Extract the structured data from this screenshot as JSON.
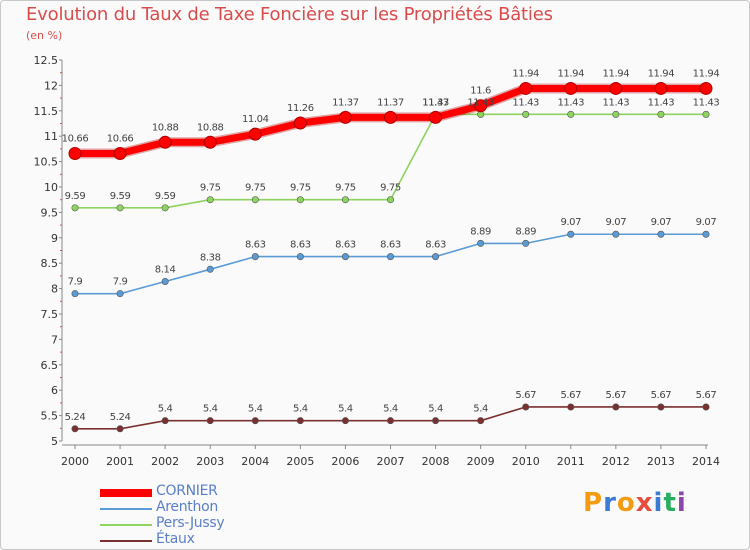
{
  "header": {
    "title": "Evolution du Taux de Taxe Foncière sur les Propriétés Bâties",
    "unit": "(en %)"
  },
  "logo": {
    "letters": [
      "P",
      "r",
      "o",
      "x",
      "i",
      "t",
      "i"
    ],
    "colors": [
      "#f39c12",
      "#3a7bd5",
      "#f39c12",
      "#e74c3c",
      "#3a7bd5",
      "#27ae60",
      "#8e44ad"
    ]
  },
  "chart_data": {
    "type": "line",
    "title": "Evolution du Taux de Taxe Foncière sur les Propriétés Bâties",
    "ylabel": "(en %)",
    "xlabel": "",
    "x": [
      "2000",
      "2001",
      "2002",
      "2003",
      "2004",
      "2005",
      "2006",
      "2007",
      "2008",
      "2009",
      "2010",
      "2011",
      "2012",
      "2013",
      "2014"
    ],
    "ylim": [
      5,
      12.5
    ],
    "yticks": [
      "5",
      "5.5",
      "6",
      "6.5",
      "7",
      "7.5",
      "8",
      "8.5",
      "9",
      "9.5",
      "10",
      "10.5",
      "11",
      "11.5",
      "12",
      "12.5"
    ],
    "grid": false,
    "legend": "bottom-left",
    "series": [
      {
        "name": "CORNIER",
        "color": "#ff0000",
        "values": [
          10.66,
          10.66,
          10.88,
          10.88,
          11.04,
          11.26,
          11.37,
          11.37,
          11.37,
          11.6,
          11.94,
          11.94,
          11.94,
          11.94,
          11.94
        ],
        "labels": [
          "10.66",
          "10.66",
          "10.88",
          "10.88",
          "11.04",
          "11.26",
          "11.37",
          "11.37",
          "11.37",
          "11.6",
          "11.94",
          "11.94",
          "11.94",
          "11.94",
          "11.94"
        ]
      },
      {
        "name": "Arenthon",
        "color": "#5b9bd5",
        "values": [
          7.9,
          7.9,
          8.14,
          8.38,
          8.63,
          8.63,
          8.63,
          8.63,
          8.63,
          8.89,
          8.89,
          9.07,
          9.07,
          9.07,
          9.07
        ],
        "labels": [
          "7.9",
          "7.9",
          "8.14",
          "8.38",
          "8.63",
          "8.63",
          "8.63",
          "8.63",
          "8.63",
          "8.89",
          "8.89",
          "9.07",
          "9.07",
          "9.07",
          "9.07"
        ]
      },
      {
        "name": "Pers-Jussy",
        "color": "#8dd35f",
        "values": [
          9.59,
          9.59,
          9.59,
          9.75,
          9.75,
          9.75,
          9.75,
          9.75,
          11.43,
          11.43,
          11.43,
          11.43,
          11.43,
          11.43,
          11.43
        ],
        "labels": [
          "9.59",
          "9.59",
          "9.59",
          "9.75",
          "9.75",
          "9.75",
          "9.75",
          "9.75",
          "11.43",
          "11.43",
          "11.43",
          "11.43",
          "11.43",
          "11.43",
          "11.43"
        ]
      },
      {
        "name": "Étaux",
        "color": "#7b3030",
        "values": [
          5.24,
          5.24,
          5.4,
          5.4,
          5.4,
          5.4,
          5.4,
          5.4,
          5.4,
          5.4,
          5.67,
          5.67,
          5.67,
          5.67,
          5.67
        ],
        "labels": [
          "5.24",
          "5.24",
          "5.4",
          "5.4",
          "5.4",
          "5.4",
          "5.4",
          "5.4",
          "5.4",
          "5.4",
          "5.67",
          "5.67",
          "5.67",
          "5.67",
          "5.67"
        ]
      }
    ]
  }
}
